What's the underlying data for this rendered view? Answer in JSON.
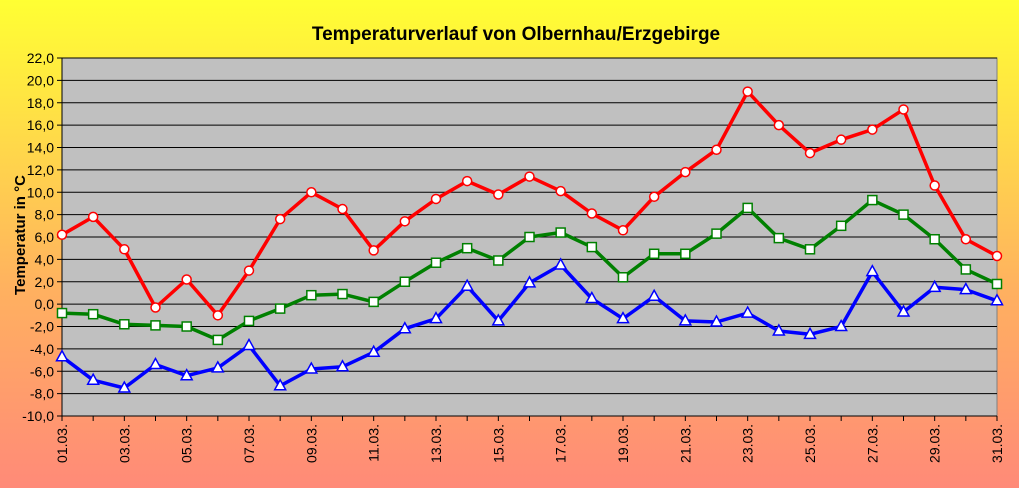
{
  "chart_data": {
    "type": "line",
    "title": "Temperaturverlauf von Olbernhau/Erzgebirge",
    "ylabel": "Temperatur in °C",
    "xlabel": "",
    "ylim": [
      -10,
      22
    ],
    "ytick_step": 2,
    "grid": true,
    "plot_background": "#c0c0c0",
    "x": [
      "01.03.",
      "02.03.",
      "03.03.",
      "04.03.",
      "05.03.",
      "06.03.",
      "07.03.",
      "08.03.",
      "09.03.",
      "10.03.",
      "11.03.",
      "12.03.",
      "13.03.",
      "14.03.",
      "15.03.",
      "16.03.",
      "17.03.",
      "18.03.",
      "19.03.",
      "20.03.",
      "21.03.",
      "22.03.",
      "23.03.",
      "24.03.",
      "25.03.",
      "26.03.",
      "27.03.",
      "28.03.",
      "29.03.",
      "30.03.",
      "31.03."
    ],
    "x_tick_labels": [
      "01.03.",
      "03.03.",
      "05.03.",
      "07.03.",
      "09.03.",
      "11.03.",
      "13.03.",
      "15.03.",
      "17.03.",
      "19.03.",
      "21.03.",
      "23.03.",
      "25.03.",
      "27.03.",
      "29.03.",
      "31.03."
    ],
    "series": [
      {
        "color": "#ff0000",
        "marker": "circle",
        "values": [
          6.2,
          7.8,
          4.9,
          -0.3,
          2.2,
          -1.0,
          3.0,
          7.6,
          10.0,
          8.5,
          4.8,
          7.4,
          9.4,
          11.0,
          9.8,
          11.4,
          10.1,
          8.1,
          6.6,
          9.6,
          11.8,
          13.8,
          19.0,
          16.0,
          13.5,
          14.7,
          15.6,
          17.4,
          10.6,
          5.8,
          4.3
        ]
      },
      {
        "color": "#008000",
        "marker": "square",
        "values": [
          -0.8,
          -0.9,
          -1.8,
          -1.9,
          -2.0,
          -3.2,
          -1.5,
          -0.4,
          0.8,
          0.9,
          0.2,
          2.0,
          3.7,
          5.0,
          3.9,
          6.0,
          6.4,
          5.1,
          2.4,
          4.5,
          4.5,
          6.3,
          8.6,
          5.9,
          4.9,
          7.0,
          9.3,
          8.0,
          5.8,
          3.1,
          1.8
        ]
      },
      {
        "color": "#0000ff",
        "marker": "triangle",
        "values": [
          -4.7,
          -6.8,
          -7.5,
          -5.4,
          -6.4,
          -5.7,
          -3.7,
          -7.3,
          -5.8,
          -5.6,
          -4.3,
          -2.2,
          -1.3,
          1.6,
          -1.5,
          1.9,
          3.5,
          0.5,
          -1.3,
          0.7,
          -1.5,
          -1.6,
          -0.8,
          -2.4,
          -2.7,
          -2.0,
          2.9,
          -0.7,
          1.5,
          1.3,
          0.3
        ]
      }
    ]
  }
}
